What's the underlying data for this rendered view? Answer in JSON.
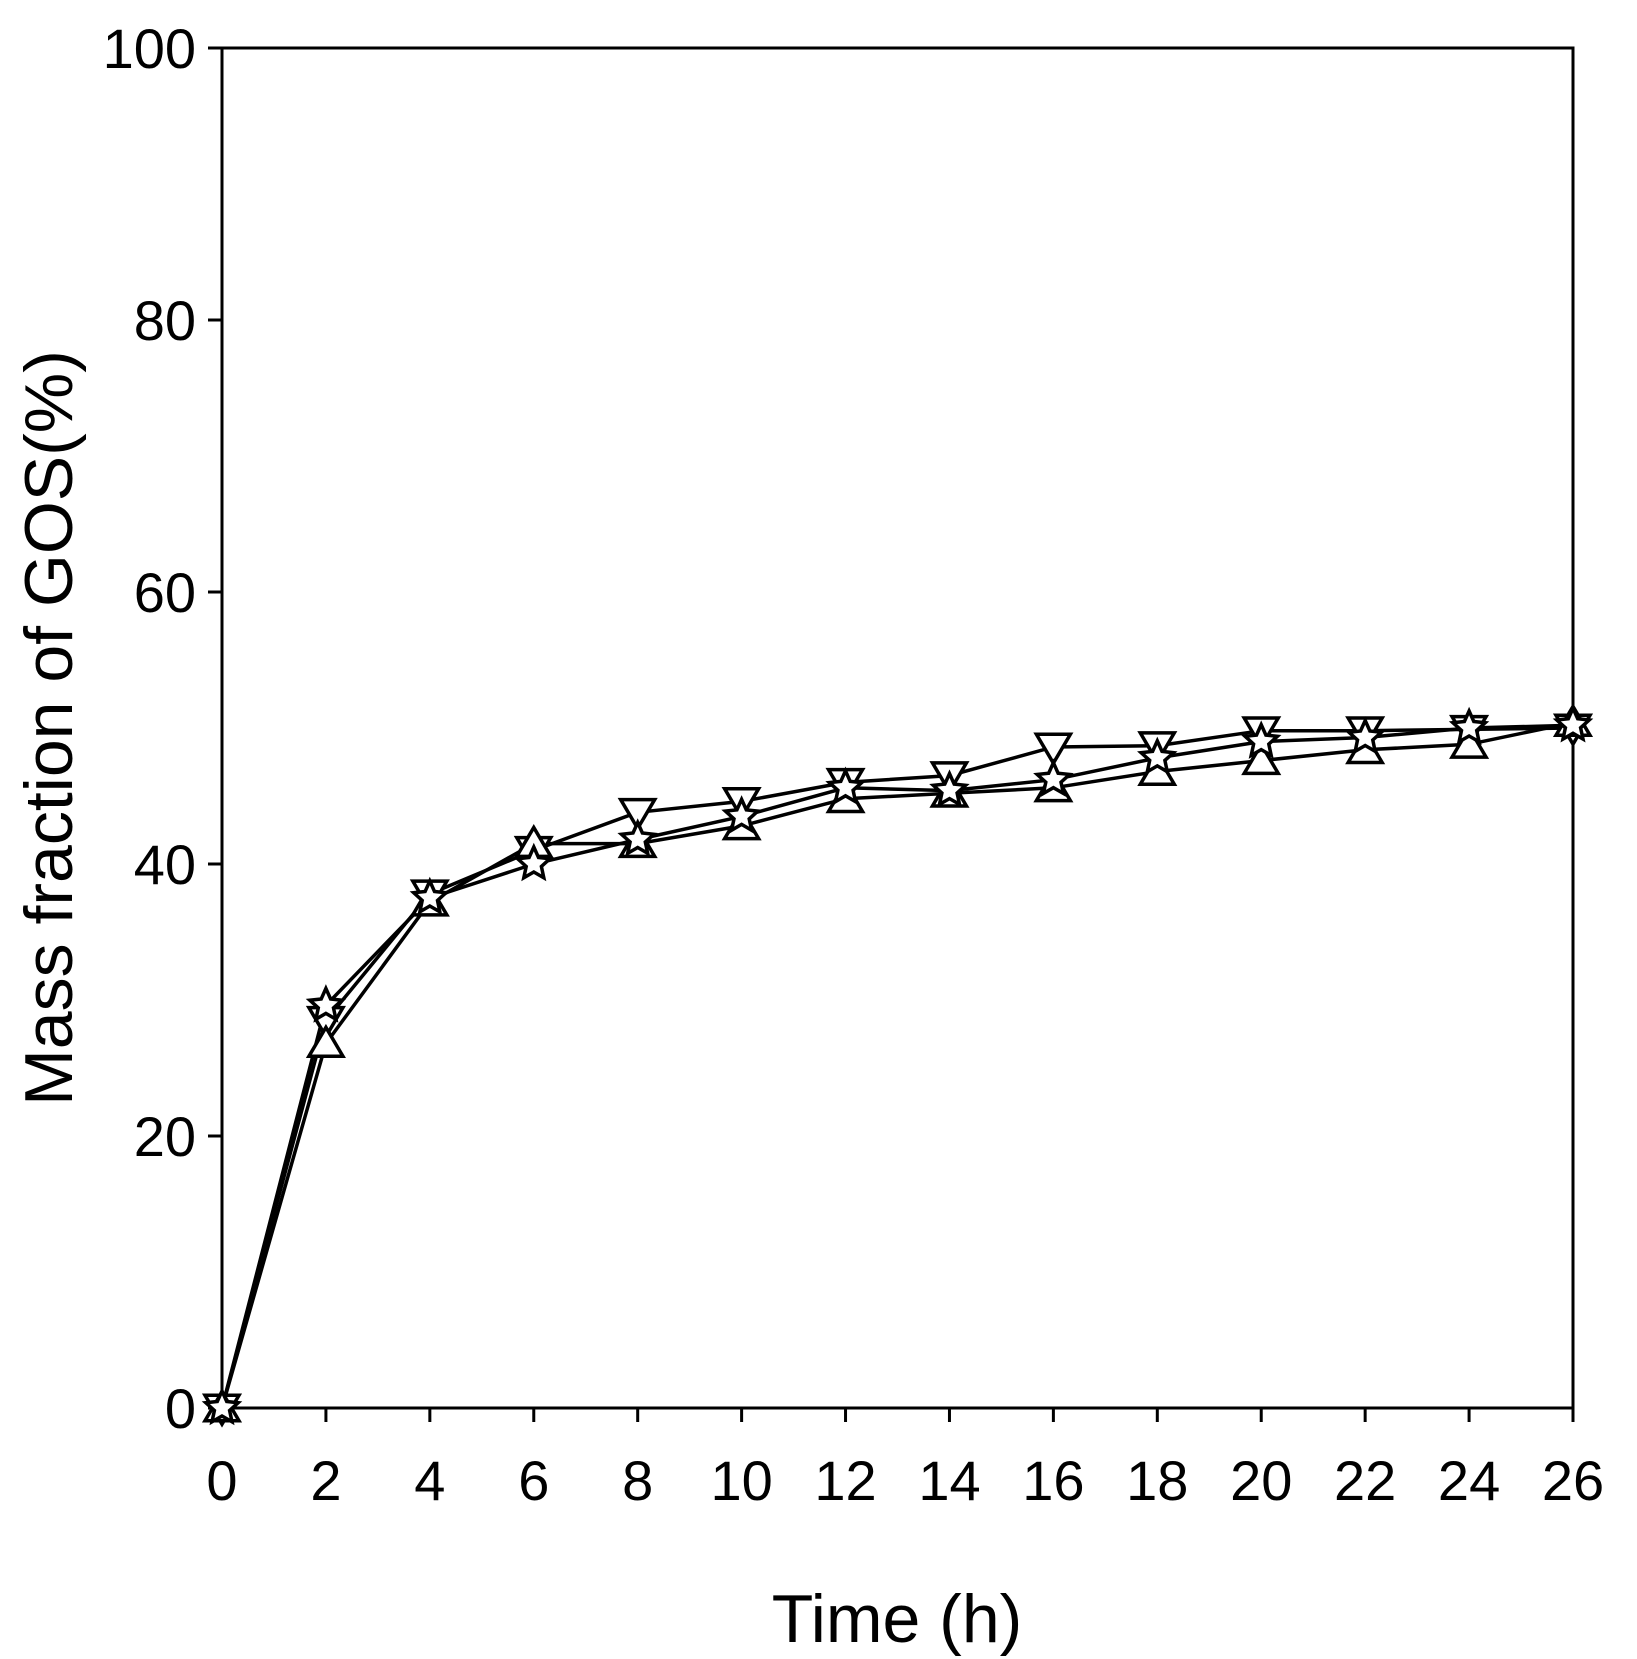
{
  "chart_data": {
    "type": "line",
    "xlabel": "Time (h)",
    "ylabel": "Mass fraction of GOS(%)",
    "xlim": [
      0,
      26
    ],
    "ylim": [
      0,
      100
    ],
    "xticks": [
      0,
      2,
      4,
      6,
      8,
      10,
      12,
      14,
      16,
      18,
      20,
      22,
      24,
      26
    ],
    "yticks": [
      0,
      20,
      40,
      60,
      80,
      100
    ],
    "grid": false,
    "legend": "none",
    "x": [
      0,
      2,
      4,
      6,
      8,
      10,
      12,
      14,
      16,
      18,
      20,
      22,
      24,
      26
    ],
    "series": [
      {
        "marker": "triangle-down",
        "values": [
          0,
          28.5,
          37.8,
          41.0,
          43.8,
          44.6,
          46.0,
          46.5,
          48.6,
          48.7,
          49.8,
          49.8,
          49.9,
          50.0
        ]
      },
      {
        "marker": "triangle-up",
        "values": [
          0,
          26.8,
          37.2,
          41.5,
          41.5,
          42.8,
          44.8,
          45.2,
          45.6,
          46.8,
          47.6,
          48.4,
          48.8,
          50.4
        ]
      },
      {
        "marker": "star",
        "values": [
          0,
          29.6,
          37.5,
          40.0,
          41.8,
          43.5,
          45.6,
          45.4,
          46.2,
          47.8,
          49.0,
          49.3,
          50.0,
          50.2
        ]
      }
    ]
  }
}
